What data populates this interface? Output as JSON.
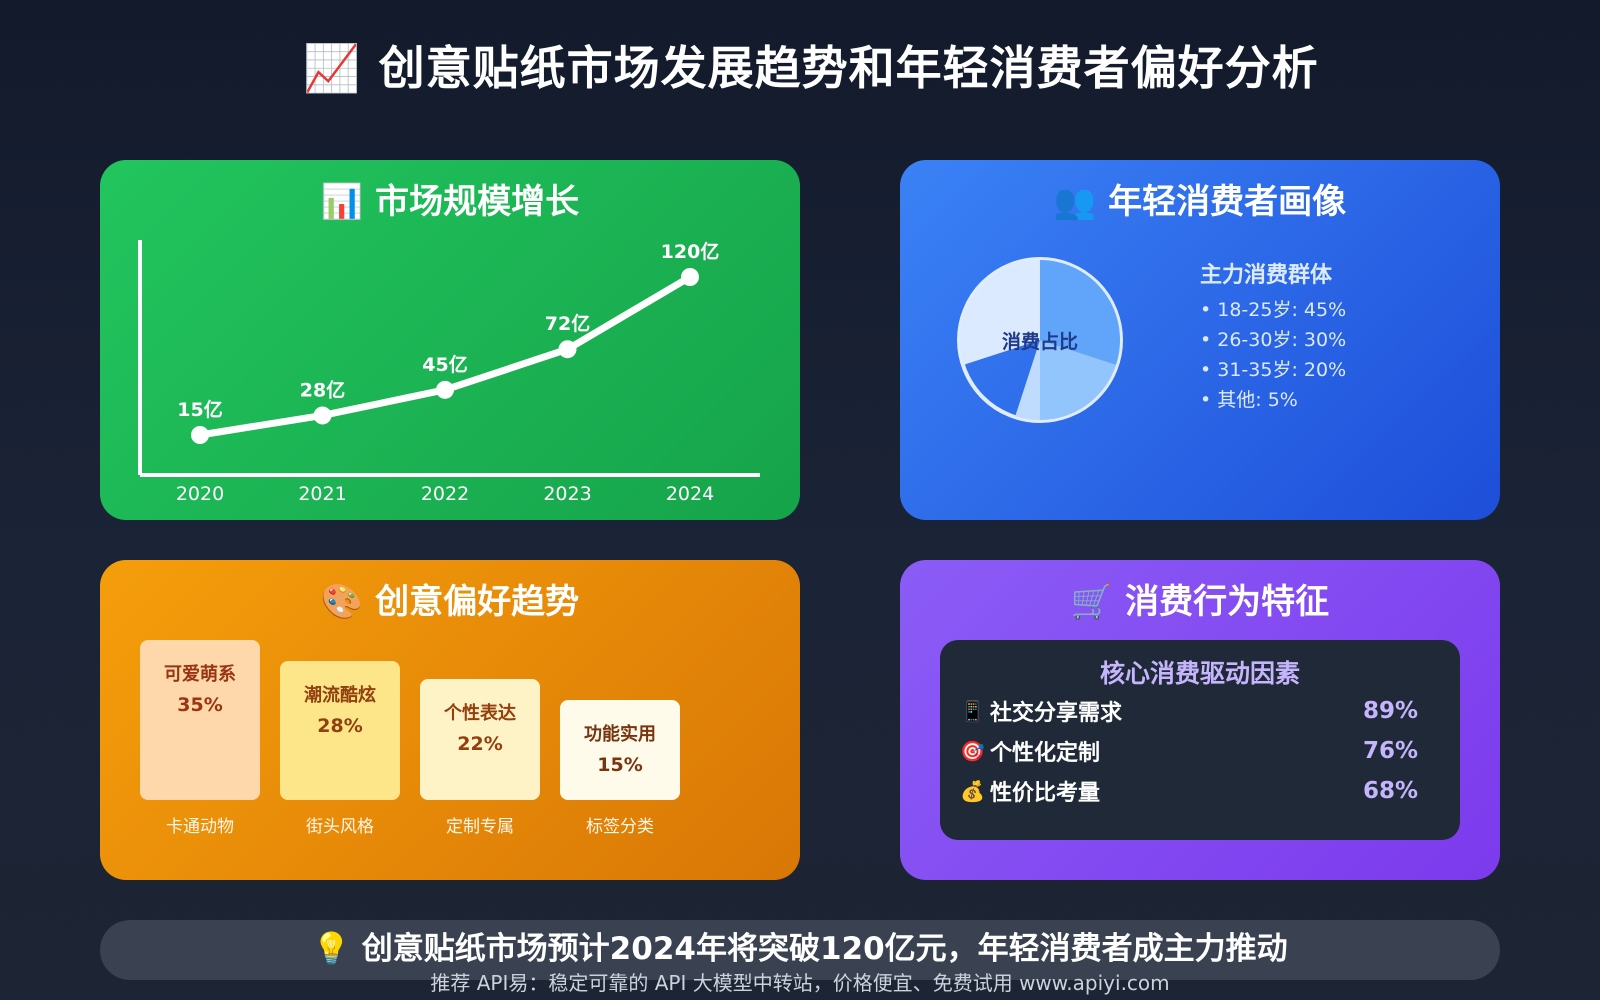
{
  "title": "📈 创意贴纸市场发展趋势和年轻消费者偏好分析",
  "market_card": {
    "title": "📊 市场规模增长"
  },
  "consumer_card": {
    "title": "👥 年轻消费者画像",
    "pie_center_label": "消费占比",
    "group_title": "主力消费群体",
    "groups": [
      "• 18-25岁: 45%",
      "• 26-30岁: 30%",
      "• 31-35岁: 20%",
      "• 其他: 5%"
    ]
  },
  "preference_card": {
    "title": "🎨 创意偏好趋势",
    "items": [
      {
        "name": "可爱萌系",
        "pct": "35%",
        "sub": "卡通动物"
      },
      {
        "name": "潮流酷炫",
        "pct": "28%",
        "sub": "街头风格"
      },
      {
        "name": "个性表达",
        "pct": "22%",
        "sub": "定制专属"
      },
      {
        "name": "功能实用",
        "pct": "15%",
        "sub": "标签分类"
      }
    ]
  },
  "behavior_card": {
    "title": "🛒 消费行为特征",
    "panel_title": "核心消费驱动因素",
    "drivers": [
      {
        "icon": "📱",
        "icon_name": "mobile-phone-icon",
        "label": "社交分享需求",
        "value": "89%"
      },
      {
        "icon": "🎯",
        "icon_name": "target-icon",
        "label": "个性化定制",
        "value": "76%"
      },
      {
        "icon": "💰",
        "icon_name": "money-bag-icon",
        "label": "性价比考量",
        "value": "68%"
      }
    ]
  },
  "banner": "💡 创意贴纸市场预计2024年将突破120亿元，年轻消费者成主力推动",
  "footer": "推荐 API易：稳定可靠的 API 大模型中转站，价格便宜、免费试用 www.apiyi.com",
  "colors": {
    "market": "#22c55e",
    "consumer": "#3b82f6",
    "preference": "#f59e0b",
    "behavior": "#8b5cf6",
    "pref_boxes": [
      "#fed7aa",
      "#fde68a",
      "#fef3c7",
      "#fffbeb"
    ],
    "pref_text": [
      "#9a3412",
      "#92400e",
      "#92400e",
      "#78350f"
    ],
    "pie_slices": [
      "#dbeafe",
      "#60a5fa",
      "#93c5fd",
      "#bfdbfe"
    ]
  },
  "chart_data": [
    {
      "type": "line",
      "title": "市场规模增长",
      "x": [
        2020,
        2021,
        2022,
        2023,
        2024
      ],
      "x_tick_labels": [
        "2020",
        "2021",
        "2022",
        "2023",
        "2024"
      ],
      "values": [
        15,
        28,
        45,
        72,
        120
      ],
      "data_labels": [
        "15亿",
        "28亿",
        "45亿",
        "72亿",
        "120亿"
      ],
      "unit": "亿"
    },
    {
      "type": "pie",
      "title": "消费占比",
      "categories": [
        "18-25岁",
        "26-30岁",
        "31-35岁",
        "其他"
      ],
      "values": [
        45,
        30,
        20,
        5
      ]
    },
    {
      "type": "bar",
      "title": "创意偏好趋势",
      "categories": [
        "可爱萌系",
        "潮流酷炫",
        "个性表达",
        "功能实用"
      ],
      "values": [
        35,
        28,
        22,
        15
      ]
    }
  ]
}
